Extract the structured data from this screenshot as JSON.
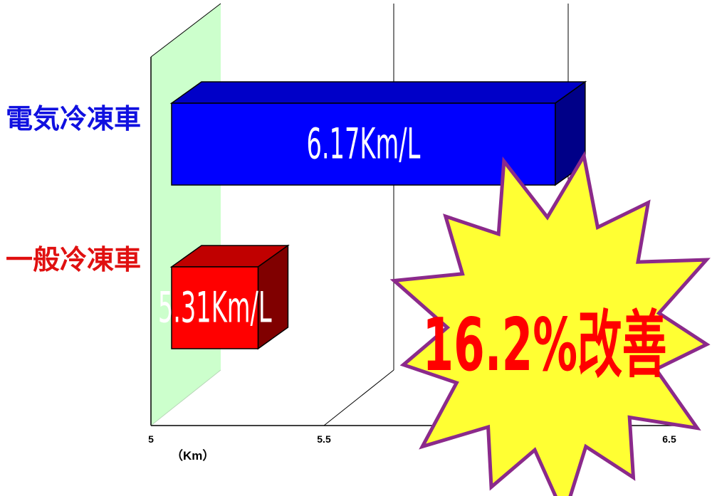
{
  "chart_data": {
    "type": "bar",
    "orientation": "horizontal",
    "style": "3d",
    "categories": [
      "電気冷凍車",
      "一般冷凍車"
    ],
    "values": [
      6.17,
      5.31
    ],
    "bar_labels": [
      "6.17Km/L",
      "5.31Km/L"
    ],
    "colors": {
      "電気冷凍車": "#0000ff",
      "一般冷凍車": "#ff0000"
    },
    "category_label_colors": [
      "#1010e0",
      "#e01010"
    ],
    "xlim": [
      5,
      6.5
    ],
    "x_ticks": [
      "5",
      "5.5",
      "6.5"
    ],
    "xlabel": "（Km）",
    "grid": true,
    "annotation": {
      "text": "16.2%改善",
      "shape": "starburst",
      "fill": "#ffff33",
      "stroke": "#8b2a8b",
      "text_color": "#ff0000"
    }
  }
}
